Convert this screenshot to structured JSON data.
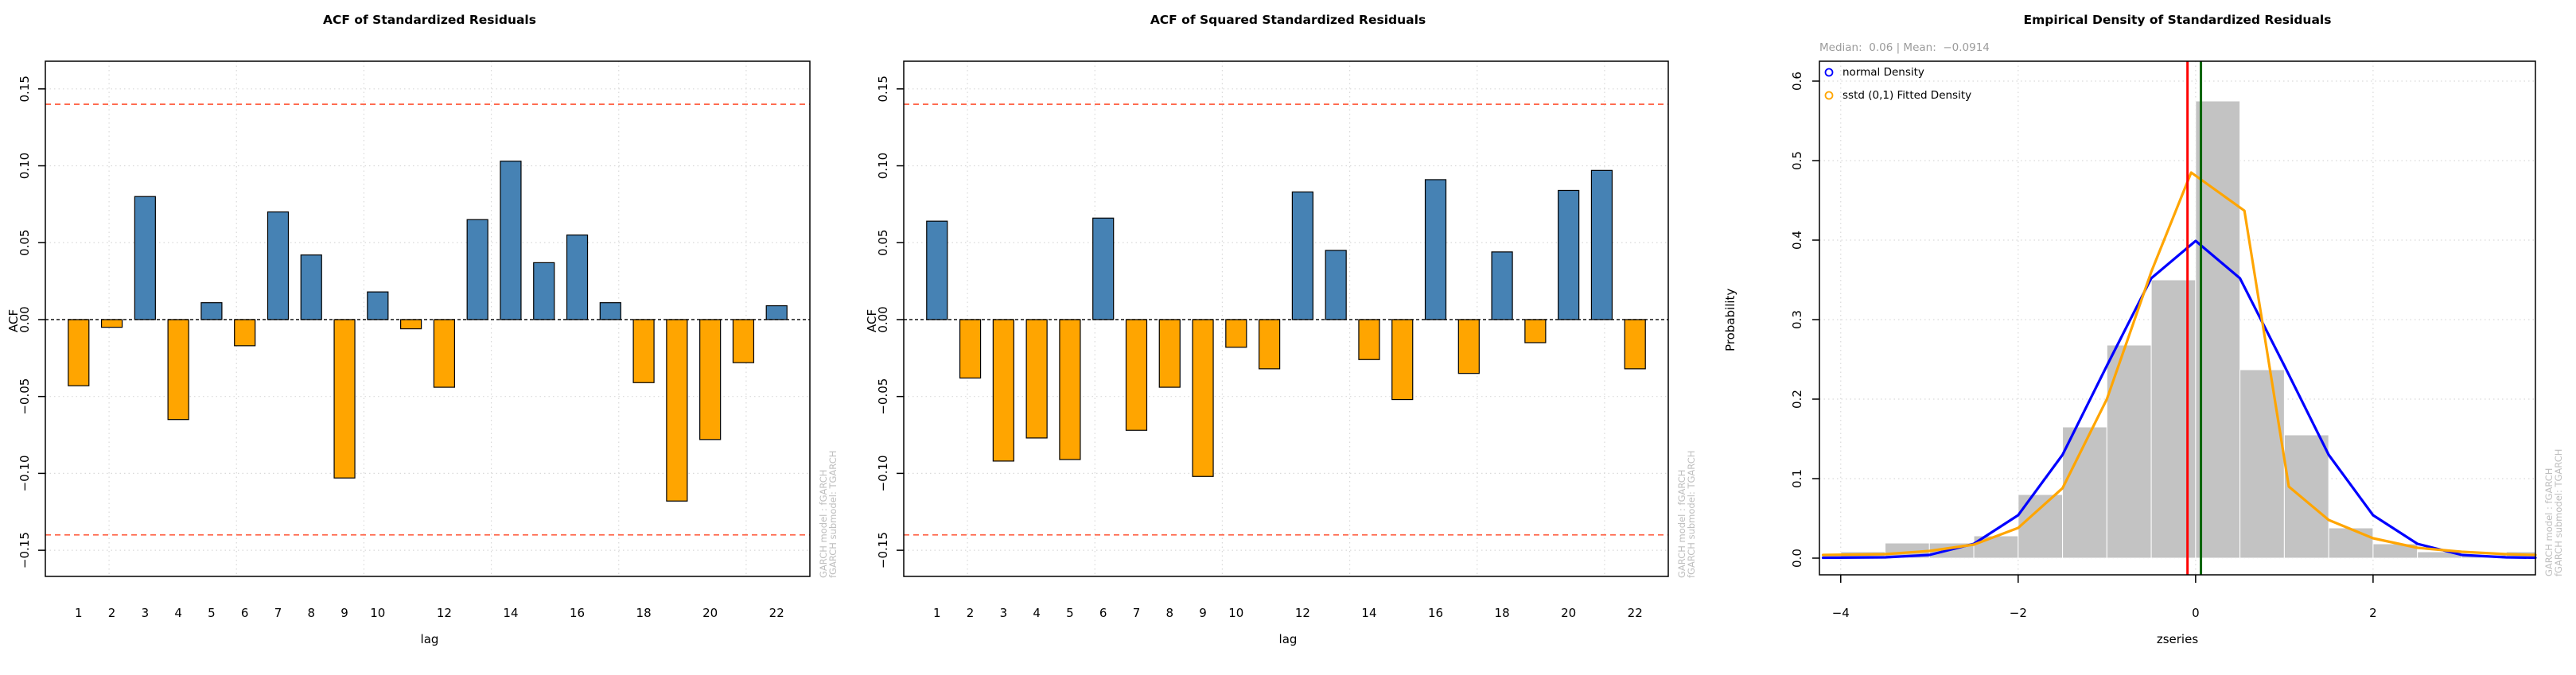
{
  "figure": {
    "background": "#ffffff",
    "watermark": {
      "line1": "GARCH model :  fGARCH",
      "line2": "fGARCH submodel: TGARCH",
      "color": "#bebebe"
    }
  },
  "chart_data": [
    {
      "type": "bar",
      "title": "ACF of Standardized Residuals",
      "xlabel": "lag",
      "ylabel": "ACF",
      "categories": [
        1,
        2,
        3,
        4,
        5,
        6,
        7,
        8,
        9,
        10,
        11,
        12,
        13,
        14,
        15,
        16,
        17,
        18,
        19,
        20,
        21,
        22
      ],
      "values": [
        -0.043,
        -0.005,
        0.08,
        -0.065,
        0.011,
        -0.017,
        0.07,
        0.042,
        -0.103,
        0.018,
        -0.006,
        -0.044,
        0.065,
        0.103,
        0.037,
        0.055,
        0.011,
        -0.041,
        -0.118,
        -0.078,
        -0.028,
        0.009
      ],
      "ylim": [
        -0.167,
        0.168
      ],
      "significance_band": 0.14,
      "x_tick_lags": [
        1,
        2,
        3,
        4,
        5,
        6,
        7,
        8,
        9,
        10,
        12,
        14,
        16,
        18,
        20,
        22
      ],
      "x_tick_labels": [
        "1",
        "2",
        "3",
        "4",
        "5",
        "6",
        "7",
        "8",
        "9",
        "10",
        "12",
        "14",
        "16",
        "18",
        "20",
        "22"
      ],
      "y_tick_values": [
        0.15,
        0.1,
        0.05,
        0.0,
        -0.05,
        -0.1,
        -0.15
      ],
      "y_tick_labels": [
        "0.15",
        "0.10",
        "0.05",
        "0.00",
        "−0.05",
        "−0.10",
        "−0.15"
      ],
      "grid": true,
      "colors": {
        "positive": "#4682b4",
        "negative": "#ffa500",
        "band": "#ff6347",
        "zero_line": "#000000",
        "grid": "#d9d9d9"
      }
    },
    {
      "type": "bar",
      "title": "ACF of Squared Standardized Residuals",
      "xlabel": "lag",
      "ylabel": "ACF",
      "categories": [
        1,
        2,
        3,
        4,
        5,
        6,
        7,
        8,
        9,
        10,
        11,
        12,
        13,
        14,
        15,
        16,
        17,
        18,
        19,
        20,
        21,
        22
      ],
      "values": [
        0.064,
        -0.038,
        -0.092,
        -0.077,
        -0.091,
        0.066,
        -0.072,
        -0.044,
        -0.102,
        -0.018,
        -0.032,
        0.083,
        0.045,
        -0.026,
        -0.052,
        0.091,
        -0.035,
        0.044,
        -0.015,
        0.084,
        0.097,
        -0.032
      ],
      "ylim": [
        -0.167,
        0.168
      ],
      "significance_band": 0.14,
      "x_tick_lags": [
        1,
        2,
        3,
        4,
        5,
        6,
        7,
        8,
        9,
        10,
        12,
        14,
        16,
        18,
        20,
        22
      ],
      "x_tick_labels": [
        "1",
        "2",
        "3",
        "4",
        "5",
        "6",
        "7",
        "8",
        "9",
        "10",
        "12",
        "14",
        "16",
        "18",
        "20",
        "22"
      ],
      "y_tick_values": [
        0.15,
        0.1,
        0.05,
        0.0,
        -0.05,
        -0.1,
        -0.15
      ],
      "y_tick_labels": [
        "0.15",
        "0.10",
        "0.05",
        "0.00",
        "−0.05",
        "−0.10",
        "−0.15"
      ],
      "grid": true,
      "colors": {
        "positive": "#4682b4",
        "negative": "#ffa500",
        "band": "#ff6347",
        "zero_line": "#000000",
        "grid": "#d9d9d9"
      }
    },
    {
      "type": "histogram",
      "title": "Empirical Density of Standardized Residuals",
      "subtitle": "Median:  0.06 | Mean:  −0.0914",
      "stats": {
        "median": 0.06,
        "mean": -0.0914
      },
      "xlabel": "zseries",
      "ylabel": "Probability",
      "xlim": [
        -4.24,
        3.83
      ],
      "ylim": [
        -0.021,
        0.625
      ],
      "hist": {
        "bin_start": -4.0,
        "bin_width": 0.5,
        "densities": [
          0.008,
          0.019,
          0.019,
          0.028,
          0.08,
          0.165,
          0.268,
          0.35,
          0.575,
          0.237,
          0.155,
          0.038,
          0.018,
          0.008,
          0.004,
          0.008
        ],
        "fill": "#c3c3c3",
        "border": "#ffffff"
      },
      "series": [
        {
          "name": "normal Density",
          "color": "#0000ff",
          "x": [
            -4.2,
            -3.5,
            -3.0,
            -2.5,
            -2.0,
            -1.5,
            -1.0,
            -0.5,
            0.0,
            0.5,
            1.0,
            1.5,
            2.0,
            2.5,
            3.0,
            3.5,
            3.83
          ],
          "y": [
            0.0005,
            0.001,
            0.004,
            0.018,
            0.054,
            0.13,
            0.242,
            0.352,
            0.399,
            0.352,
            0.242,
            0.13,
            0.054,
            0.018,
            0.004,
            0.001,
            0.0005
          ]
        },
        {
          "name": "sstd (0,1) Fitted Density",
          "color": "#ffa500",
          "x": [
            -4.2,
            -3.5,
            -3.0,
            -2.5,
            -2.0,
            -1.5,
            -1.0,
            -0.5,
            -0.05,
            0.55,
            1.05,
            1.5,
            2.0,
            2.5,
            3.0,
            3.5,
            3.83
          ],
          "y": [
            0.004,
            0.005,
            0.009,
            0.017,
            0.038,
            0.088,
            0.2,
            0.36,
            0.485,
            0.437,
            0.09,
            0.048,
            0.025,
            0.013,
            0.008,
            0.005,
            0.004
          ]
        }
      ],
      "vlines": [
        {
          "name": "mean-line",
          "x": -0.0914,
          "color": "#ff0000"
        },
        {
          "name": "median-line",
          "x": 0.06,
          "color": "#006400"
        }
      ],
      "x_tick_values": [
        -4,
        -2,
        0,
        2
      ],
      "x_tick_labels": [
        "−4",
        "−2",
        "0",
        "2"
      ],
      "y_tick_values": [
        0.0,
        0.1,
        0.2,
        0.3,
        0.4,
        0.5,
        0.6
      ],
      "y_tick_labels": [
        "0.0",
        "0.1",
        "0.2",
        "0.3",
        "0.4",
        "0.5",
        "0.6"
      ],
      "legend_position": "top-left",
      "grid": true,
      "colors": {
        "grid": "#d9d9d9"
      }
    }
  ]
}
